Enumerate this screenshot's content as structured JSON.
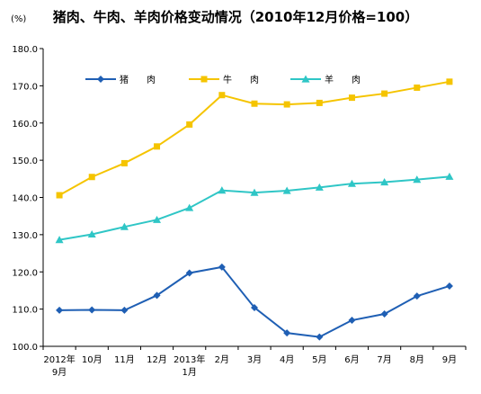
{
  "chart_data": {
    "type": "line",
    "title": "猪肉、牛肉、羊肉价格变动情况（2010年12月价格=100）",
    "unit_label": "(%)",
    "x_tick_labels": [
      [
        "2012年",
        "9月"
      ],
      [
        "10月"
      ],
      [
        "11月"
      ],
      [
        "12月"
      ],
      [
        "2013年",
        "1月"
      ],
      [
        "2月"
      ],
      [
        "3月"
      ],
      [
        "4月"
      ],
      [
        "5月"
      ],
      [
        "6月"
      ],
      [
        "7月"
      ],
      [
        "8月"
      ],
      [
        "9月"
      ]
    ],
    "y_tick_labels": [
      "100.0",
      "110.0",
      "120.0",
      "130.0",
      "140.0",
      "150.0",
      "160.0",
      "170.0",
      "180.0"
    ],
    "ylim": [
      100,
      180
    ],
    "y_ticks": [
      100,
      110,
      120,
      130,
      140,
      150,
      160,
      170,
      180
    ],
    "grid": false,
    "legend_position": "top",
    "series": [
      {
        "name": "猪　　肉",
        "color": "#1f5fb4",
        "marker": "diamond",
        "values": [
          109.7,
          109.8,
          109.7,
          113.7,
          119.7,
          121.3,
          110.4,
          103.6,
          102.5,
          107.0,
          108.7,
          113.5,
          116.2
        ]
      },
      {
        "name": "牛　　肉",
        "color": "#f5c400",
        "marker": "square",
        "values": [
          140.6,
          145.5,
          149.2,
          153.7,
          159.6,
          167.5,
          165.2,
          165.0,
          165.4,
          166.8,
          167.9,
          169.5,
          171.1
        ]
      },
      {
        "name": "羊　　肉",
        "color": "#2fc6c6",
        "marker": "triangle",
        "values": [
          128.6,
          130.1,
          132.1,
          134.0,
          137.2,
          141.9,
          141.3,
          141.8,
          142.7,
          143.7,
          144.1,
          144.8,
          145.6
        ]
      }
    ]
  }
}
